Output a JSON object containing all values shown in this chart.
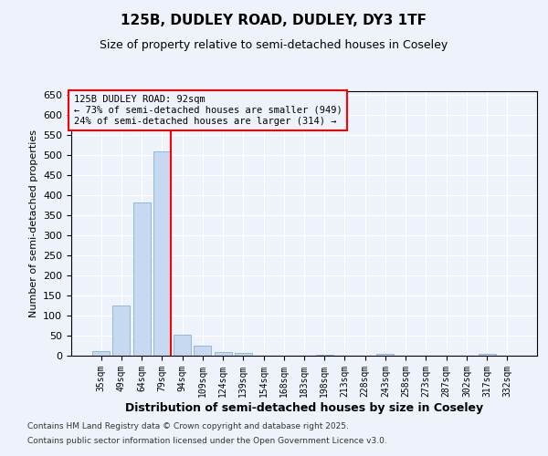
{
  "title1": "125B, DUDLEY ROAD, DUDLEY, DY3 1TF",
  "title2": "Size of property relative to semi-detached houses in Coseley",
  "xlabel": "Distribution of semi-detached houses by size in Coseley",
  "ylabel": "Number of semi-detached properties",
  "categories": [
    "35sqm",
    "49sqm",
    "64sqm",
    "79sqm",
    "94sqm",
    "109sqm",
    "124sqm",
    "139sqm",
    "154sqm",
    "168sqm",
    "183sqm",
    "198sqm",
    "213sqm",
    "228sqm",
    "243sqm",
    "258sqm",
    "273sqm",
    "287sqm",
    "302sqm",
    "317sqm",
    "332sqm"
  ],
  "values": [
    12,
    125,
    383,
    510,
    53,
    26,
    10,
    7,
    0,
    0,
    0,
    3,
    0,
    0,
    4,
    0,
    0,
    0,
    0,
    4,
    0
  ],
  "bar_color": "#c6d9f1",
  "bar_edge_color": "#8fb8d8",
  "vline_color": "red",
  "annotation_text_line1": "125B DUDLEY ROAD: 92sqm",
  "annotation_text_line2": "← 73% of semi-detached houses are smaller (949)",
  "annotation_text_line3": "24% of semi-detached houses are larger (314) →",
  "ylim": [
    0,
    660
  ],
  "yticks": [
    0,
    50,
    100,
    150,
    200,
    250,
    300,
    350,
    400,
    450,
    500,
    550,
    600,
    650
  ],
  "footnote1": "Contains HM Land Registry data © Crown copyright and database right 2025.",
  "footnote2": "Contains public sector information licensed under the Open Government Licence v3.0.",
  "bg_color": "#eef2fa"
}
